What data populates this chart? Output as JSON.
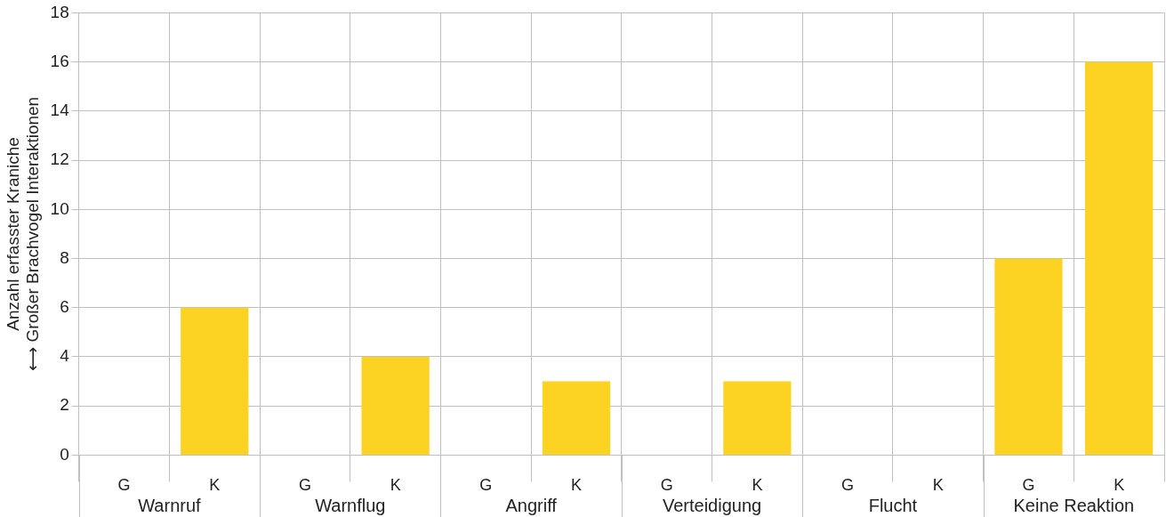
{
  "chart_data": {
    "type": "bar",
    "ylabel": "Anzahl erfasster Kraniche\n⟷ Großer Brachvogel Interaktionen",
    "categories": [
      "G",
      "K",
      "G",
      "K",
      "G",
      "K",
      "G",
      "K",
      "G",
      "K",
      "G",
      "K"
    ],
    "values": [
      0,
      6,
      0,
      4,
      0,
      3,
      0,
      3,
      0,
      0,
      8,
      16
    ],
    "color": "#fdd323",
    "ylim": [
      0,
      18
    ],
    "yticks": [
      0,
      2,
      4,
      6,
      8,
      10,
      12,
      14,
      16,
      18
    ],
    "grid": true,
    "annotations": [
      "Warnruf",
      "Warnflug",
      "Angriff",
      "Verteidigung",
      "Flucht",
      "Keine Reaktion"
    ]
  }
}
